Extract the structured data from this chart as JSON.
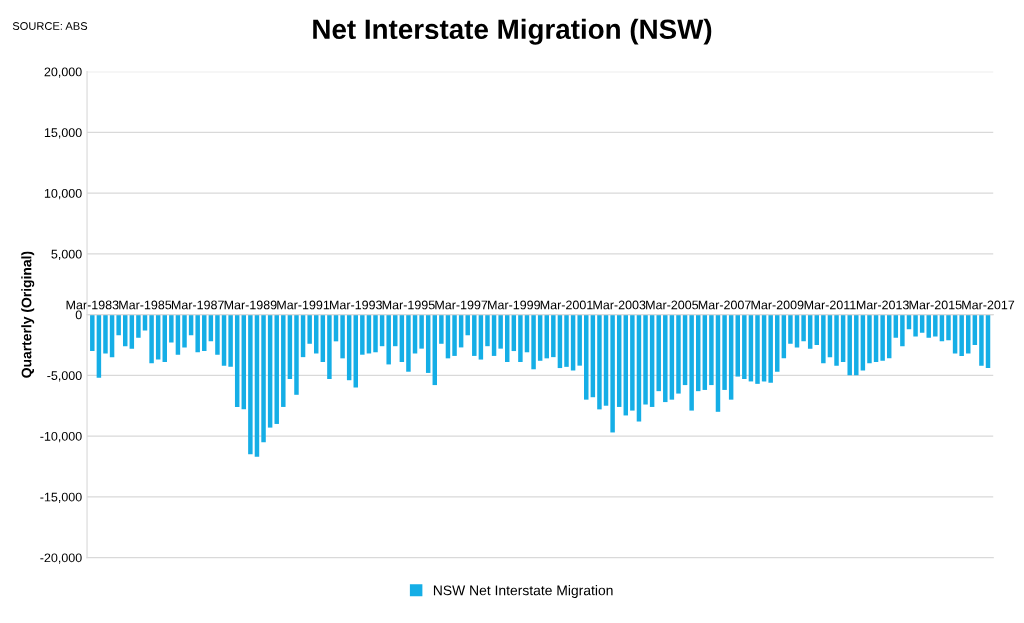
{
  "chart_data": {
    "type": "bar",
    "title": "Net Interstate Migration (NSW)",
    "ylabel": "Quarterly (Original)",
    "annotations": [
      "SOURCE: ABS"
    ],
    "categories": [
      "Mar-1983",
      null,
      null,
      null,
      null,
      null,
      null,
      null,
      "Mar-1985",
      null,
      null,
      null,
      null,
      null,
      null,
      null,
      "Mar-1987",
      null,
      null,
      null,
      null,
      null,
      null,
      null,
      "Mar-1989",
      null,
      null,
      null,
      null,
      null,
      null,
      null,
      "Mar-1991",
      null,
      null,
      null,
      null,
      null,
      null,
      null,
      "Mar-1993",
      null,
      null,
      null,
      null,
      null,
      null,
      null,
      "Mar-1995",
      null,
      null,
      null,
      null,
      null,
      null,
      null,
      "Mar-1997",
      null,
      null,
      null,
      null,
      null,
      null,
      null,
      "Mar-1999",
      null,
      null,
      null,
      null,
      null,
      null,
      null,
      "Mar-2001",
      null,
      null,
      null,
      null,
      null,
      null,
      null,
      "Mar-2003",
      null,
      null,
      null,
      null,
      null,
      null,
      null,
      "Mar-2005",
      null,
      null,
      null,
      null,
      null,
      null,
      null,
      "Mar-2007",
      null,
      null,
      null,
      null,
      null,
      null,
      null,
      "Mar-2009",
      null,
      null,
      null,
      null,
      null,
      null,
      null,
      "Mar-2011",
      null,
      null,
      null,
      null,
      null,
      null,
      null,
      "Mar-2013",
      null,
      null,
      null,
      null,
      null,
      null,
      null,
      "Mar-2015",
      null,
      null,
      null,
      null,
      null,
      null,
      null,
      "Mar-2017"
    ],
    "series": [
      {
        "name": "NSW Net Interstate Migration",
        "color": "#15aee6",
        "values": [
          -3000,
          -5200,
          -3200,
          -3500,
          -1700,
          -2600,
          -2800,
          -1900,
          -1300,
          -4000,
          -3700,
          -3900,
          -2300,
          -3300,
          -2700,
          -1700,
          -3100,
          -3000,
          -2200,
          -3300,
          -4200,
          -4300,
          -7600,
          -7800,
          -11500,
          -11700,
          -10500,
          -9300,
          -9000,
          -7600,
          -5300,
          -6600,
          -3500,
          -2400,
          -3200,
          -3900,
          -5300,
          -2200,
          -3600,
          -5400,
          -6000,
          -3300,
          -3200,
          -3100,
          -2600,
          -4100,
          -2600,
          -3900,
          -4700,
          -3200,
          -2800,
          -4800,
          -5800,
          -2400,
          -3600,
          -3400,
          -2700,
          -1700,
          -3400,
          -3700,
          -2600,
          -3400,
          -2800,
          -3900,
          -3000,
          -3900,
          -3100,
          -4500,
          -3800,
          -3600,
          -3500,
          -4400,
          -4300,
          -4600,
          -4200,
          -7000,
          -6800,
          -7800,
          -7500,
          -9700,
          -7600,
          -8300,
          -7900,
          -8800,
          -7400,
          -7600,
          -6300,
          -7200,
          -7000,
          -6500,
          -5800,
          -7900,
          -6300,
          -6200,
          -5800,
          -8000,
          -6200,
          -7000,
          -5100,
          -5300,
          -5500,
          -5700,
          -5500,
          -5600,
          -4700,
          -3600,
          -2400,
          -2700,
          -2200,
          -2800,
          -2500,
          -4000,
          -3500,
          -4200,
          -3900,
          -5000,
          -5000,
          -4600,
          -4000,
          -3900,
          -3800,
          -3600,
          -1900,
          -2600,
          -1200,
          -1800,
          -1500,
          -1900,
          -1800,
          -2200,
          -2100,
          -3200,
          -3400,
          -3200,
          -2500,
          -4200,
          -4400
        ]
      }
    ],
    "ylim": [
      -20000,
      20000
    ],
    "yticks": [
      {
        "value": -20000,
        "label": "-20,000"
      },
      {
        "value": -15000,
        "label": "-15,000"
      },
      {
        "value": -10000,
        "label": "-10,000"
      },
      {
        "value": -5000,
        "label": "-5,000"
      },
      {
        "value": 0,
        "label": "0"
      },
      {
        "value": 5000,
        "label": "5,000"
      },
      {
        "value": 10000,
        "label": "10,000"
      },
      {
        "value": 15000,
        "label": "15,000"
      },
      {
        "value": 20000,
        "label": "20,000"
      }
    ],
    "grid": "y",
    "legend": "bottom"
  }
}
